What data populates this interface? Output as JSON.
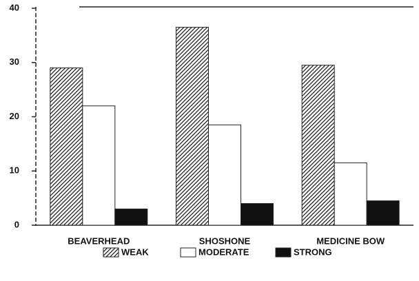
{
  "chart_data": {
    "type": "bar",
    "categories": [
      "BEAVERHEAD",
      "SHOSHONE",
      "MEDICINE BOW"
    ],
    "series": [
      {
        "name": "WEAK",
        "color": "#333333",
        "hatch": true,
        "values": [
          29,
          36.5,
          29.5
        ]
      },
      {
        "name": "MODERATE",
        "color": "#ffffff",
        "hatch": false,
        "values": [
          22,
          18.5,
          11.5
        ]
      },
      {
        "name": "STRONG",
        "color": "#111111",
        "hatch": false,
        "values": [
          3,
          4,
          4.5
        ]
      }
    ],
    "ylim": [
      0,
      40
    ],
    "yticks": [
      0,
      10,
      20,
      30,
      40
    ],
    "grid": false
  }
}
